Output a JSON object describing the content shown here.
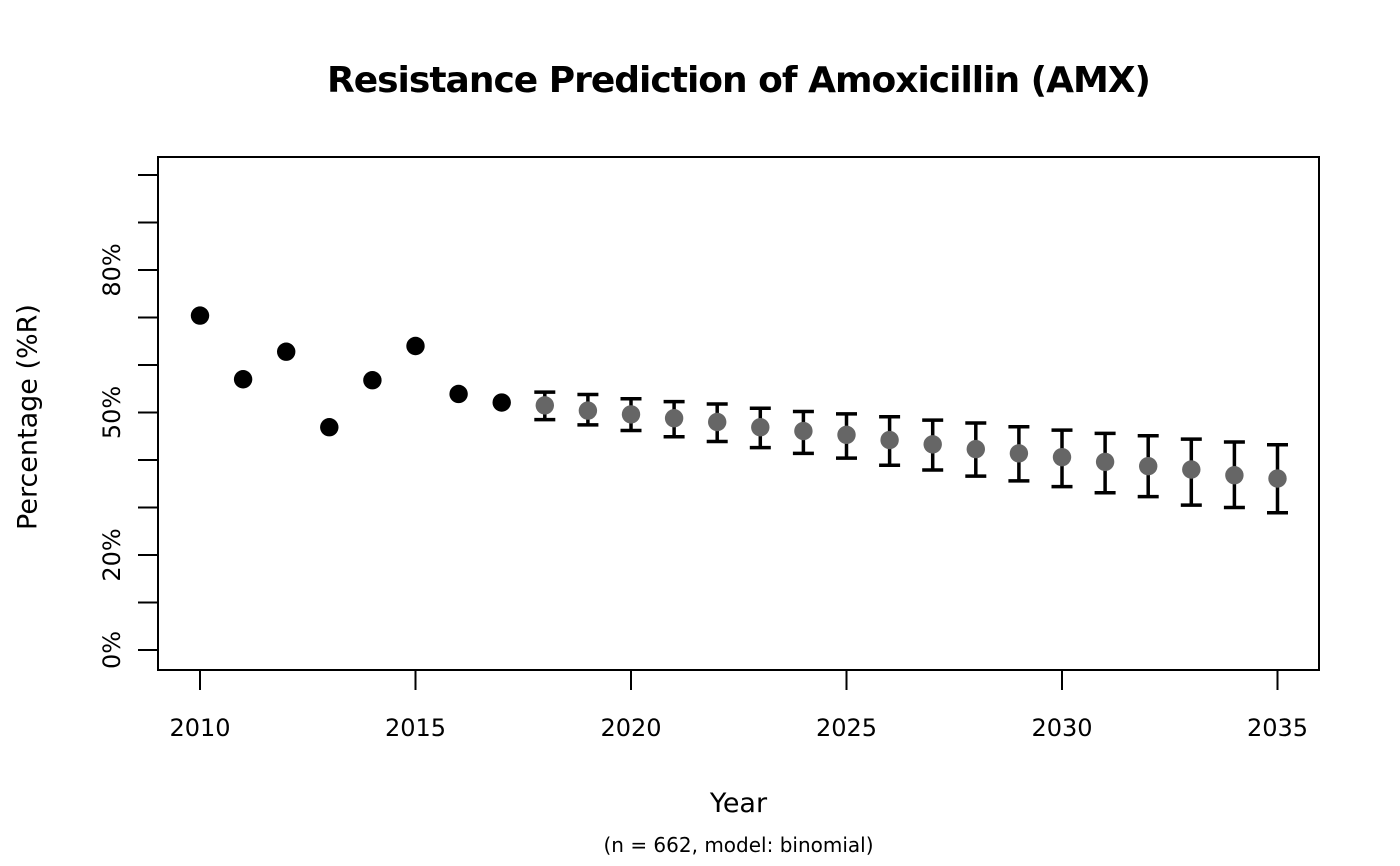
{
  "page": {
    "background": "#ffffff",
    "foreground": "#000000"
  },
  "chart_data": {
    "type": "scatter",
    "title": "Resistance Prediction of Amoxicillin (AMX)",
    "xlabel": "Year",
    "x_sublabel": "(n = 662, model: binomial)",
    "ylabel": "Percentage (%R)",
    "xlim": [
      2009,
      2036
    ],
    "ylim": [
      0,
      100
    ],
    "grid": false,
    "legend": "none",
    "x_ticks": [
      2010,
      2015,
      2020,
      2025,
      2030,
      2035
    ],
    "y_tick_step": 10,
    "y_tick_labels": [
      {
        "value": 0,
        "label": "0%"
      },
      {
        "value": 20,
        "label": "20%"
      },
      {
        "value": 50,
        "label": "50%"
      },
      {
        "value": 80,
        "label": "80%"
      }
    ],
    "series": [
      {
        "name": "observed",
        "marker": "filled-circle",
        "color": "#000000",
        "points": [
          {
            "x": 2010,
            "y": 70.4
          },
          {
            "x": 2011,
            "y": 57.0
          },
          {
            "x": 2012,
            "y": 62.8
          },
          {
            "x": 2013,
            "y": 46.9
          },
          {
            "x": 2014,
            "y": 56.8
          },
          {
            "x": 2015,
            "y": 64.0
          },
          {
            "x": 2016,
            "y": 53.9
          },
          {
            "x": 2017,
            "y": 52.1
          }
        ]
      },
      {
        "name": "predicted",
        "marker": "filled-circle-with-error-bar",
        "color": "#666666",
        "error_bar_color": "#000000",
        "points": [
          {
            "x": 2018,
            "y": 51.5,
            "lo": 48.5,
            "hi": 54.3
          },
          {
            "x": 2019,
            "y": 50.4,
            "lo": 47.4,
            "hi": 53.8
          },
          {
            "x": 2020,
            "y": 49.6,
            "lo": 46.2,
            "hi": 52.9
          },
          {
            "x": 2021,
            "y": 48.8,
            "lo": 44.9,
            "hi": 52.3
          },
          {
            "x": 2022,
            "y": 48.0,
            "lo": 43.9,
            "hi": 51.8
          },
          {
            "x": 2023,
            "y": 46.9,
            "lo": 42.6,
            "hi": 50.9
          },
          {
            "x": 2024,
            "y": 46.1,
            "lo": 41.4,
            "hi": 50.2
          },
          {
            "x": 2025,
            "y": 45.3,
            "lo": 40.4,
            "hi": 49.7
          },
          {
            "x": 2026,
            "y": 44.2,
            "lo": 38.9,
            "hi": 49.1
          },
          {
            "x": 2027,
            "y": 43.3,
            "lo": 37.9,
            "hi": 48.4
          },
          {
            "x": 2028,
            "y": 42.3,
            "lo": 36.6,
            "hi": 47.8
          },
          {
            "x": 2029,
            "y": 41.4,
            "lo": 35.6,
            "hi": 47.0
          },
          {
            "x": 2030,
            "y": 40.6,
            "lo": 34.4,
            "hi": 46.3
          },
          {
            "x": 2031,
            "y": 39.6,
            "lo": 33.1,
            "hi": 45.6
          },
          {
            "x": 2032,
            "y": 38.7,
            "lo": 32.3,
            "hi": 45.1
          },
          {
            "x": 2033,
            "y": 38.0,
            "lo": 30.5,
            "hi": 44.4
          },
          {
            "x": 2034,
            "y": 36.8,
            "lo": 30.0,
            "hi": 43.8
          },
          {
            "x": 2035,
            "y": 36.1,
            "lo": 28.9,
            "hi": 43.2
          }
        ]
      }
    ]
  }
}
